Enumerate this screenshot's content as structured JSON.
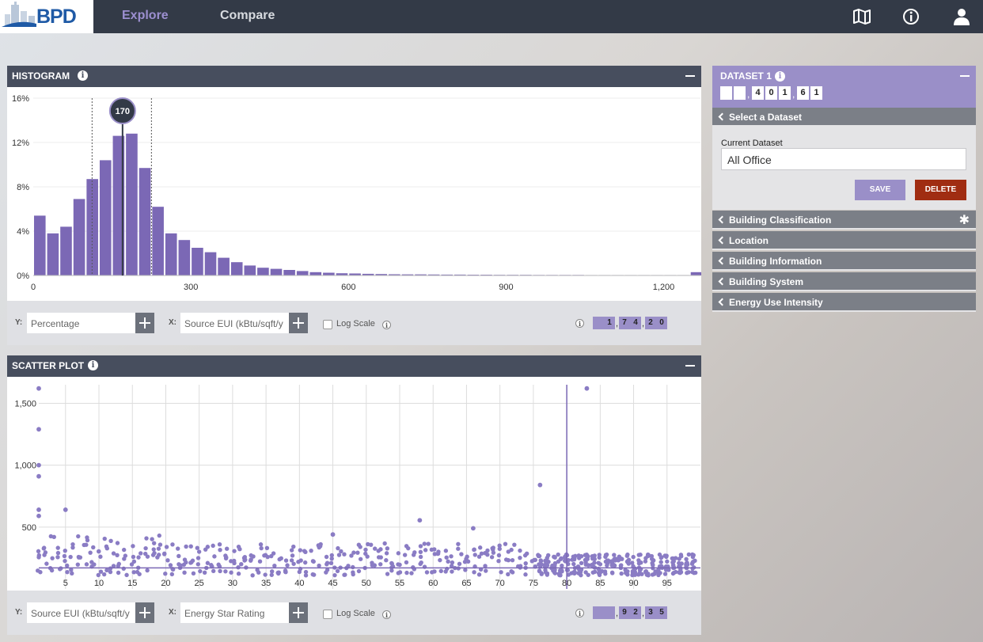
{
  "app": {
    "logo_text": "BPD"
  },
  "nav": {
    "explore": "Explore",
    "compare": "Compare"
  },
  "top_icons": [
    "map-icon",
    "info-icon",
    "user-icon"
  ],
  "histogram": {
    "title": "HISTOGRAM",
    "info": "i",
    "y_control": {
      "label": "Y:",
      "value": "Percentage"
    },
    "x_control": {
      "label": "X:",
      "value": "Source EUI (kBtu/sqft/y"
    },
    "log_scale_label": "Log Scale",
    "count_digits": [
      "",
      "1",
      "7",
      "4",
      "2",
      "0"
    ],
    "count_separators": [
      1,
      3
    ],
    "marker_label": "170"
  },
  "scatter": {
    "title": "SCATTER PLOT",
    "info": "i",
    "y_control": {
      "label": "Y:",
      "value": "Source EUI (kBtu/sqft/y"
    },
    "x_control": {
      "label": "X:",
      "value": "Energy Star Rating"
    },
    "log_scale_label": "Log Scale",
    "count_digits": [
      "",
      "",
      "9",
      "2",
      "3",
      "5"
    ],
    "count_separators": [
      1,
      3
    ]
  },
  "dataset": {
    "title": "DATASET 1",
    "info": "i",
    "digits": [
      "",
      "",
      "4",
      "0",
      "1",
      "6",
      "1"
    ],
    "separators": [
      1,
      4
    ],
    "select_label": "Select a Dataset",
    "current_label": "Current Dataset",
    "current_value": "All Office",
    "save_label": "SAVE",
    "delete_label": "DELETE",
    "sections": [
      {
        "label": "Building Classification",
        "asterisk": "✱"
      },
      {
        "label": "Location"
      },
      {
        "label": "Building Information"
      },
      {
        "label": "Building System"
      },
      {
        "label": "Energy Use Intensity"
      }
    ]
  },
  "chart_data": [
    {
      "type": "bar",
      "x": [
        0,
        25,
        50,
        75,
        100,
        125,
        150,
        175,
        200,
        225,
        250,
        275,
        300,
        325,
        350,
        375,
        400,
        425,
        450,
        475,
        500,
        525,
        550,
        575,
        600,
        625,
        650,
        675,
        700,
        725,
        750,
        775,
        800,
        825,
        850,
        875,
        900,
        925,
        950,
        975,
        1000,
        1025,
        1050,
        1075,
        1100,
        1125,
        1150,
        1175,
        1200,
        1225,
        1250
      ],
      "values": [
        5.4,
        3.8,
        4.4,
        6.9,
        8.7,
        10.4,
        12.6,
        12.8,
        9.7,
        6.2,
        3.8,
        3.2,
        2.5,
        2.1,
        1.6,
        1.2,
        0.9,
        0.7,
        0.6,
        0.5,
        0.4,
        0.3,
        0.25,
        0.2,
        0.18,
        0.15,
        0.13,
        0.11,
        0.1,
        0.1,
        0.09,
        0.08,
        0.08,
        0.07,
        0.07,
        0.06,
        0.06,
        0.06,
        0.05,
        0.05,
        0.05,
        0.05,
        0.04,
        0.04,
        0.04,
        0.04,
        0.04,
        0.04,
        0.04,
        0.04,
        0.3
      ],
      "x_ticks": [
        "0",
        "300",
        "600",
        "900",
        "1,200"
      ],
      "y_ticks": [
        "0%",
        "4%",
        "8%",
        "12%",
        "16%"
      ],
      "ylim": [
        0,
        16
      ],
      "xlim": [
        0,
        1270
      ],
      "marker_value": 170,
      "selection_range": [
        112,
        225
      ],
      "color": "#7b68b5"
    },
    {
      "type": "scatter",
      "x_ticks": [
        "5",
        "10",
        "15",
        "20",
        "25",
        "30",
        "35",
        "40",
        "45",
        "50",
        "55",
        "60",
        "65",
        "70",
        "75",
        "80",
        "85",
        "90",
        "95"
      ],
      "y_ticks": [
        "500",
        "1,000",
        "1,500"
      ],
      "xlim": [
        1,
        100
      ],
      "ylim": [
        0,
        1650
      ],
      "reference_line_x": 80,
      "reference_line_y": 170,
      "color": "#8a7cc4",
      "highlight_points": [
        {
          "x": 1,
          "y": 1620
        },
        {
          "x": 1,
          "y": 1290
        },
        {
          "x": 1,
          "y": 1000
        },
        {
          "x": 1,
          "y": 910
        },
        {
          "x": 1,
          "y": 640
        },
        {
          "x": 1,
          "y": 590
        },
        {
          "x": 5,
          "y": 640
        },
        {
          "x": 58,
          "y": 555
        },
        {
          "x": 66,
          "y": 490
        },
        {
          "x": 76,
          "y": 840
        },
        {
          "x": 83,
          "y": 1620
        },
        {
          "x": 45,
          "y": 440
        }
      ]
    }
  ]
}
